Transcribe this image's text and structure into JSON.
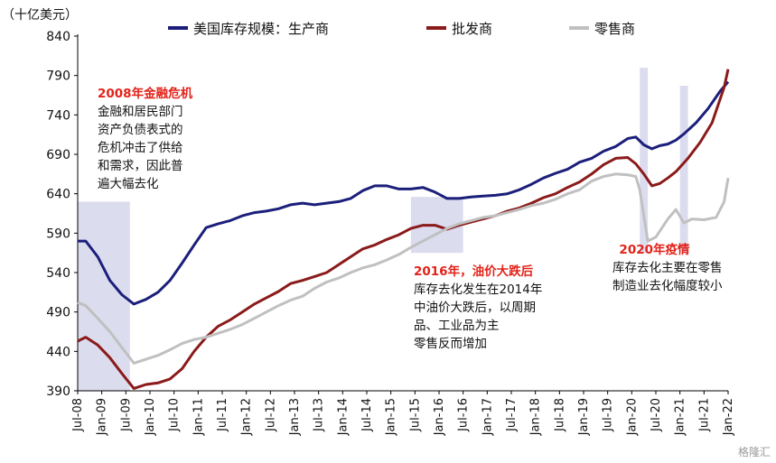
{
  "chart_data": {
    "type": "line",
    "unit_label": "（十亿美元）",
    "ylim": [
      390,
      840
    ],
    "yticks": [
      390,
      440,
      490,
      540,
      590,
      640,
      690,
      740,
      790,
      840
    ],
    "xlim": [
      "2008-07",
      "2022-01"
    ],
    "xticks": [
      "Jul-08",
      "Jan-09",
      "Jul-09",
      "Jan-10",
      "Jul-10",
      "Jan-11",
      "Jul-11",
      "Jan-12",
      "Jul-12",
      "Jan-13",
      "Jul-13",
      "Jan-14",
      "Jul-14",
      "Jan-15",
      "Jul-15",
      "Jan-16",
      "Jul-16",
      "Jan-17",
      "Jul-17",
      "Jan-18",
      "Jul-18",
      "Jan-19",
      "Jul-19",
      "Jan-20",
      "Jul-20",
      "Jan-21",
      "Jul-21",
      "Jan-22"
    ],
    "legend_placement": "top",
    "grid": false,
    "shaded_periods": [
      {
        "start": "2008-07",
        "end": "2009-08"
      },
      {
        "start": "2015-06",
        "end": "2016-07"
      },
      {
        "start": "2020-03",
        "end": "2020-05"
      },
      {
        "start": "2021-01",
        "end": "2021-03"
      }
    ],
    "series": [
      {
        "name": "美国库存规模：生产商",
        "color": "#1b1f7a",
        "points": [
          [
            "2008-07",
            580
          ],
          [
            "2008-09",
            580
          ],
          [
            "2008-12",
            560
          ],
          [
            "2009-03",
            530
          ],
          [
            "2009-06",
            512
          ],
          [
            "2009-09",
            500
          ],
          [
            "2009-12",
            506
          ],
          [
            "2010-03",
            515
          ],
          [
            "2010-06",
            530
          ],
          [
            "2010-09",
            552
          ],
          [
            "2010-12",
            575
          ],
          [
            "2011-03",
            597
          ],
          [
            "2011-06",
            602
          ],
          [
            "2011-09",
            606
          ],
          [
            "2011-12",
            612
          ],
          [
            "2012-03",
            616
          ],
          [
            "2012-06",
            618
          ],
          [
            "2012-09",
            621
          ],
          [
            "2012-12",
            626
          ],
          [
            "2013-03",
            628
          ],
          [
            "2013-06",
            626
          ],
          [
            "2013-09",
            628
          ],
          [
            "2013-12",
            630
          ],
          [
            "2014-03",
            634
          ],
          [
            "2014-06",
            644
          ],
          [
            "2014-09",
            650
          ],
          [
            "2014-12",
            650
          ],
          [
            "2015-03",
            646
          ],
          [
            "2015-06",
            646
          ],
          [
            "2015-09",
            648
          ],
          [
            "2015-12",
            642
          ],
          [
            "2016-03",
            634
          ],
          [
            "2016-06",
            634
          ],
          [
            "2016-09",
            636
          ],
          [
            "2016-12",
            637
          ],
          [
            "2017-03",
            638
          ],
          [
            "2017-06",
            640
          ],
          [
            "2017-09",
            645
          ],
          [
            "2017-12",
            652
          ],
          [
            "2018-03",
            660
          ],
          [
            "2018-06",
            666
          ],
          [
            "2018-09",
            671
          ],
          [
            "2018-12",
            680
          ],
          [
            "2019-03",
            685
          ],
          [
            "2019-06",
            694
          ],
          [
            "2019-09",
            700
          ],
          [
            "2019-12",
            710
          ],
          [
            "2020-02",
            712
          ],
          [
            "2020-04",
            702
          ],
          [
            "2020-06",
            697
          ],
          [
            "2020-08",
            701
          ],
          [
            "2020-10",
            703
          ],
          [
            "2020-12",
            708
          ],
          [
            "2021-02",
            716
          ],
          [
            "2021-05",
            730
          ],
          [
            "2021-08",
            748
          ],
          [
            "2021-11",
            770
          ],
          [
            "2022-01",
            782
          ]
        ]
      },
      {
        "name": "批发商",
        "color": "#8b1a1a",
        "points": [
          [
            "2008-07",
            453
          ],
          [
            "2008-09",
            458
          ],
          [
            "2008-12",
            448
          ],
          [
            "2009-03",
            432
          ],
          [
            "2009-06",
            412
          ],
          [
            "2009-09",
            393
          ],
          [
            "2009-12",
            398
          ],
          [
            "2010-03",
            400
          ],
          [
            "2010-06",
            405
          ],
          [
            "2010-09",
            418
          ],
          [
            "2010-12",
            440
          ],
          [
            "2011-03",
            458
          ],
          [
            "2011-06",
            472
          ],
          [
            "2011-09",
            480
          ],
          [
            "2011-12",
            490
          ],
          [
            "2012-03",
            500
          ],
          [
            "2012-06",
            508
          ],
          [
            "2012-09",
            516
          ],
          [
            "2012-12",
            526
          ],
          [
            "2013-03",
            530
          ],
          [
            "2013-06",
            535
          ],
          [
            "2013-09",
            540
          ],
          [
            "2013-12",
            550
          ],
          [
            "2014-03",
            560
          ],
          [
            "2014-06",
            570
          ],
          [
            "2014-09",
            575
          ],
          [
            "2014-12",
            582
          ],
          [
            "2015-03",
            588
          ],
          [
            "2015-06",
            596
          ],
          [
            "2015-09",
            600
          ],
          [
            "2015-12",
            600
          ],
          [
            "2016-03",
            595
          ],
          [
            "2016-06",
            600
          ],
          [
            "2016-09",
            604
          ],
          [
            "2016-12",
            608
          ],
          [
            "2017-03",
            612
          ],
          [
            "2017-06",
            618
          ],
          [
            "2017-09",
            622
          ],
          [
            "2017-12",
            628
          ],
          [
            "2018-03",
            635
          ],
          [
            "2018-06",
            640
          ],
          [
            "2018-09",
            648
          ],
          [
            "2018-12",
            655
          ],
          [
            "2019-03",
            665
          ],
          [
            "2019-06",
            677
          ],
          [
            "2019-09",
            685
          ],
          [
            "2019-12",
            686
          ],
          [
            "2020-02",
            678
          ],
          [
            "2020-04",
            665
          ],
          [
            "2020-06",
            650
          ],
          [
            "2020-08",
            653
          ],
          [
            "2020-10",
            660
          ],
          [
            "2020-12",
            668
          ],
          [
            "2021-03",
            685
          ],
          [
            "2021-06",
            705
          ],
          [
            "2021-09",
            730
          ],
          [
            "2021-12",
            775
          ],
          [
            "2022-01",
            798
          ]
        ]
      },
      {
        "name": "零售商",
        "color": "#c0c0c0",
        "points": [
          [
            "2008-07",
            502
          ],
          [
            "2008-09",
            498
          ],
          [
            "2008-12",
            482
          ],
          [
            "2009-03",
            465
          ],
          [
            "2009-06",
            445
          ],
          [
            "2009-09",
            425
          ],
          [
            "2009-12",
            430
          ],
          [
            "2010-03",
            435
          ],
          [
            "2010-06",
            442
          ],
          [
            "2010-09",
            450
          ],
          [
            "2010-12",
            455
          ],
          [
            "2011-03",
            458
          ],
          [
            "2011-06",
            463
          ],
          [
            "2011-09",
            468
          ],
          [
            "2011-12",
            474
          ],
          [
            "2012-03",
            482
          ],
          [
            "2012-06",
            490
          ],
          [
            "2012-09",
            498
          ],
          [
            "2012-12",
            505
          ],
          [
            "2013-03",
            510
          ],
          [
            "2013-06",
            520
          ],
          [
            "2013-09",
            528
          ],
          [
            "2013-12",
            533
          ],
          [
            "2014-03",
            540
          ],
          [
            "2014-06",
            546
          ],
          [
            "2014-09",
            550
          ],
          [
            "2014-12",
            556
          ],
          [
            "2015-03",
            563
          ],
          [
            "2015-06",
            572
          ],
          [
            "2015-09",
            580
          ],
          [
            "2015-12",
            588
          ],
          [
            "2016-03",
            596
          ],
          [
            "2016-06",
            602
          ],
          [
            "2016-09",
            606
          ],
          [
            "2016-12",
            610
          ],
          [
            "2017-03",
            612
          ],
          [
            "2017-06",
            616
          ],
          [
            "2017-09",
            620
          ],
          [
            "2017-12",
            625
          ],
          [
            "2018-03",
            628
          ],
          [
            "2018-06",
            633
          ],
          [
            "2018-09",
            640
          ],
          [
            "2018-12",
            645
          ],
          [
            "2019-03",
            656
          ],
          [
            "2019-06",
            662
          ],
          [
            "2019-09",
            665
          ],
          [
            "2019-12",
            664
          ],
          [
            "2020-02",
            662
          ],
          [
            "2020-03",
            645
          ],
          [
            "2020-05",
            580
          ],
          [
            "2020-07",
            585
          ],
          [
            "2020-10",
            608
          ],
          [
            "2020-12",
            620
          ],
          [
            "2021-02",
            603
          ],
          [
            "2021-04",
            608
          ],
          [
            "2021-07",
            607
          ],
          [
            "2021-10",
            610
          ],
          [
            "2021-12",
            630
          ],
          [
            "2022-01",
            660
          ]
        ]
      }
    ]
  },
  "annotations": {
    "crisis_2008": {
      "title": "2008年金融危机",
      "lines": [
        "金融和居民部门",
        "资产负债表式的",
        "危机冲击了供给",
        "和需求，因此普",
        "遍大幅去化"
      ]
    },
    "oil_2016": {
      "title": "2016年，油价大跌后",
      "lines": [
        "库存去化发生在2014年",
        "中油价大跌后，以周期",
        "品、工业品为主",
        "零售反而增加"
      ]
    },
    "covid_2020": {
      "title": "2020年疫情",
      "lines": [
        "库存去化主要在零售",
        "制造业去化幅度较小"
      ]
    }
  },
  "watermark": "格隆汇"
}
